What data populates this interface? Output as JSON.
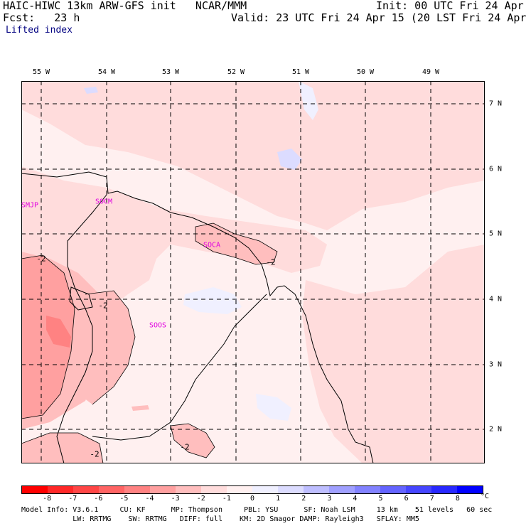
{
  "header": {
    "model_title": "HAIC-HIWC 13km ARW-GFS init   NCAR/MMM",
    "init_time": "Init: 00 UTC Fri 24 Apr 15",
    "forecast_hour": "Fcst:   23 h",
    "valid_time": "Valid: 23 UTC Fri 24 Apr 15 (20 LST Fri 24 Apr 15)",
    "field_name": "Lifted index"
  },
  "map": {
    "longitude_labels": [
      "55 W",
      "54 W",
      "53 W",
      "52 W",
      "51 W",
      "50 W",
      "49 W"
    ],
    "latitude_labels": [
      "7 N",
      "6 N",
      "5 N",
      "4 N",
      "3 N",
      "2 N"
    ],
    "stations": [
      "SMJP",
      "SOCM",
      "SOCA",
      "SOOS"
    ],
    "contour_labels": [
      "-2",
      "-2",
      "-2",
      "-2",
      "-2"
    ],
    "colors": {
      "background": "#ffffff",
      "grid": "#000000",
      "station_text": "#e000e0"
    }
  },
  "colorbar": {
    "tick_labels": [
      "-8",
      "-7",
      "-6",
      "-5",
      "-4",
      "-3",
      "-2",
      "-1",
      "0",
      "1",
      "2",
      "3",
      "4",
      "5",
      "6",
      "7",
      "8"
    ],
    "unit": "°C",
    "colors": [
      "#ff0000",
      "#ff2828",
      "#ff4646",
      "#ff6464",
      "#ff8282",
      "#ffa0a0",
      "#ffbebe",
      "#ffdcdc",
      "#fff0f0",
      "#f0f0ff",
      "#dcdcff",
      "#bebeff",
      "#a0a0ff",
      "#8282ff",
      "#6464ff",
      "#4646ff",
      "#2828ff",
      "#0000ff"
    ]
  },
  "footer": {
    "line1": "Model Info: V3.6.1     CU: KF      MP: Thompson     PBL: YSU      SF: Noah LSM     13 km    51 levels   60 sec",
    "line2": "            LW: RRTMG    SW: RRTMG   DIFF: full    KM: 2D Smagor DAMP: Rayleigh3   SFLAY: MM5"
  }
}
